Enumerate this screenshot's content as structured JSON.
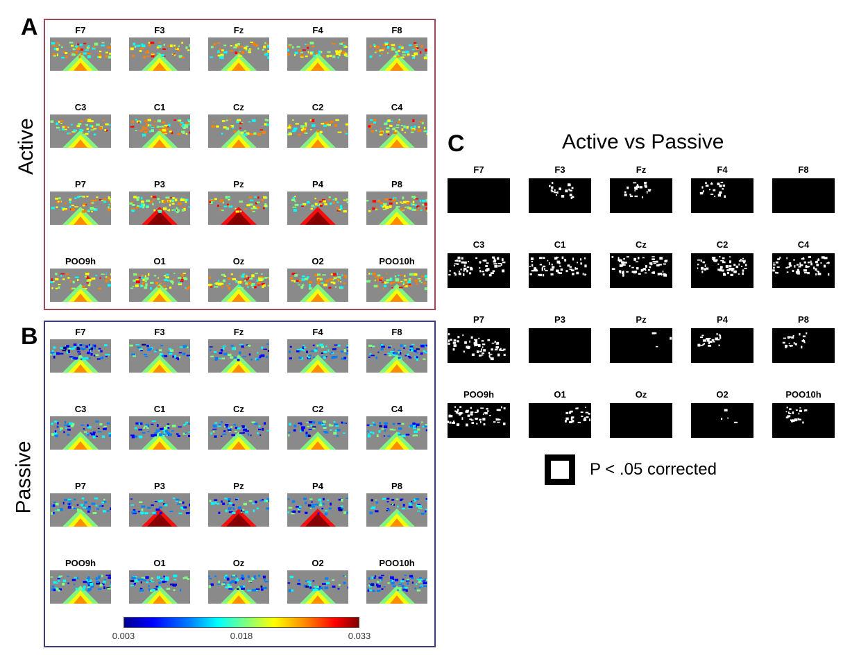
{
  "panels": {
    "a": {
      "letter": "A",
      "condition": "Active"
    },
    "b": {
      "letter": "B",
      "condition": "Passive"
    },
    "c": {
      "letter": "C",
      "title": "Active vs Passive"
    }
  },
  "electrodes": [
    [
      "F7",
      "F3",
      "Fz",
      "F4",
      "F8"
    ],
    [
      "C3",
      "C1",
      "Cz",
      "C2",
      "C4"
    ],
    [
      "P7",
      "P3",
      "Pz",
      "P4",
      "P8"
    ],
    [
      "POO9h",
      "O1",
      "Oz",
      "O2",
      "POO10h"
    ]
  ],
  "colorbar": {
    "ticks": [
      "0.003",
      "0.018",
      "0.033"
    ],
    "colors": [
      "#00008f",
      "#0000ff",
      "#0080ff",
      "#00ffff",
      "#80ff80",
      "#ffff00",
      "#ff8000",
      "#ff0000",
      "#800000"
    ]
  },
  "legend": {
    "label": "P < .05 corrected"
  },
  "colors": {
    "active_border": "#9b4a58",
    "passive_border": "#3c3c78",
    "topo_background": "#8a8a8a",
    "mask_background": "#000000"
  },
  "significant_electrodes": [
    "F3",
    "Fz",
    "F4",
    "C3",
    "C1",
    "Cz",
    "C2",
    "C4",
    "P7",
    "Pz",
    "P4",
    "P8",
    "POO9h",
    "O1",
    "O2",
    "POO10h"
  ]
}
